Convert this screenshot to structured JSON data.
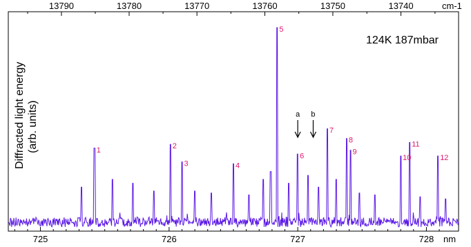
{
  "chart_data": {
    "type": "line",
    "ylabel": "Diffracted light energy",
    "ylabel_units": "(arb. units)",
    "annotation": "124K 187mbar",
    "x_axis": {
      "unit": "nm",
      "range": [
        724.75,
        728.25
      ],
      "ticks": [
        725,
        726,
        727,
        728
      ]
    },
    "x2_axis": {
      "unit": "cm-1",
      "ticks": [
        13790,
        13780,
        13770,
        13760,
        13750,
        13740
      ]
    },
    "y_axis": {
      "range": [
        0,
        1
      ],
      "ticks_shown": false
    },
    "grid": false,
    "series_color": "#5b18e6",
    "label_color": "#e0186c",
    "peaks": [
      {
        "label": "1",
        "x": 725.42,
        "y": 0.38
      },
      {
        "label": "2",
        "x": 726.01,
        "y": 0.4
      },
      {
        "label": "3",
        "x": 726.1,
        "y": 0.31
      },
      {
        "label": "4",
        "x": 726.5,
        "y": 0.3
      },
      {
        "label": "5",
        "x": 726.84,
        "y": 1.0
      },
      {
        "label": "6",
        "x": 727.0,
        "y": 0.35
      },
      {
        "label": "7",
        "x": 727.23,
        "y": 0.48
      },
      {
        "label": "8",
        "x": 727.38,
        "y": 0.43
      },
      {
        "label": "9",
        "x": 727.41,
        "y": 0.37
      },
      {
        "label": "10",
        "x": 727.8,
        "y": 0.34
      },
      {
        "label": "11",
        "x": 727.87,
        "y": 0.41
      },
      {
        "label": "12",
        "x": 728.09,
        "y": 0.34
      }
    ],
    "minor_peaks": [
      {
        "x": 725.32,
        "y": 0.18
      },
      {
        "x": 725.56,
        "y": 0.22
      },
      {
        "x": 725.72,
        "y": 0.2
      },
      {
        "x": 725.88,
        "y": 0.16
      },
      {
        "x": 726.2,
        "y": 0.16
      },
      {
        "x": 726.33,
        "y": 0.15
      },
      {
        "x": 726.62,
        "y": 0.14
      },
      {
        "x": 726.73,
        "y": 0.22
      },
      {
        "x": 726.79,
        "y": 0.26
      },
      {
        "x": 726.93,
        "y": 0.2
      },
      {
        "x": 727.08,
        "y": 0.24
      },
      {
        "x": 727.16,
        "y": 0.18
      },
      {
        "x": 727.3,
        "y": 0.22
      },
      {
        "x": 727.48,
        "y": 0.15
      },
      {
        "x": 727.6,
        "y": 0.14
      },
      {
        "x": 727.95,
        "y": 0.13
      },
      {
        "x": 728.15,
        "y": 0.12
      }
    ],
    "arrows": [
      {
        "label": "a",
        "x": 727.0
      },
      {
        "label": "b",
        "x": 727.12
      }
    ]
  }
}
